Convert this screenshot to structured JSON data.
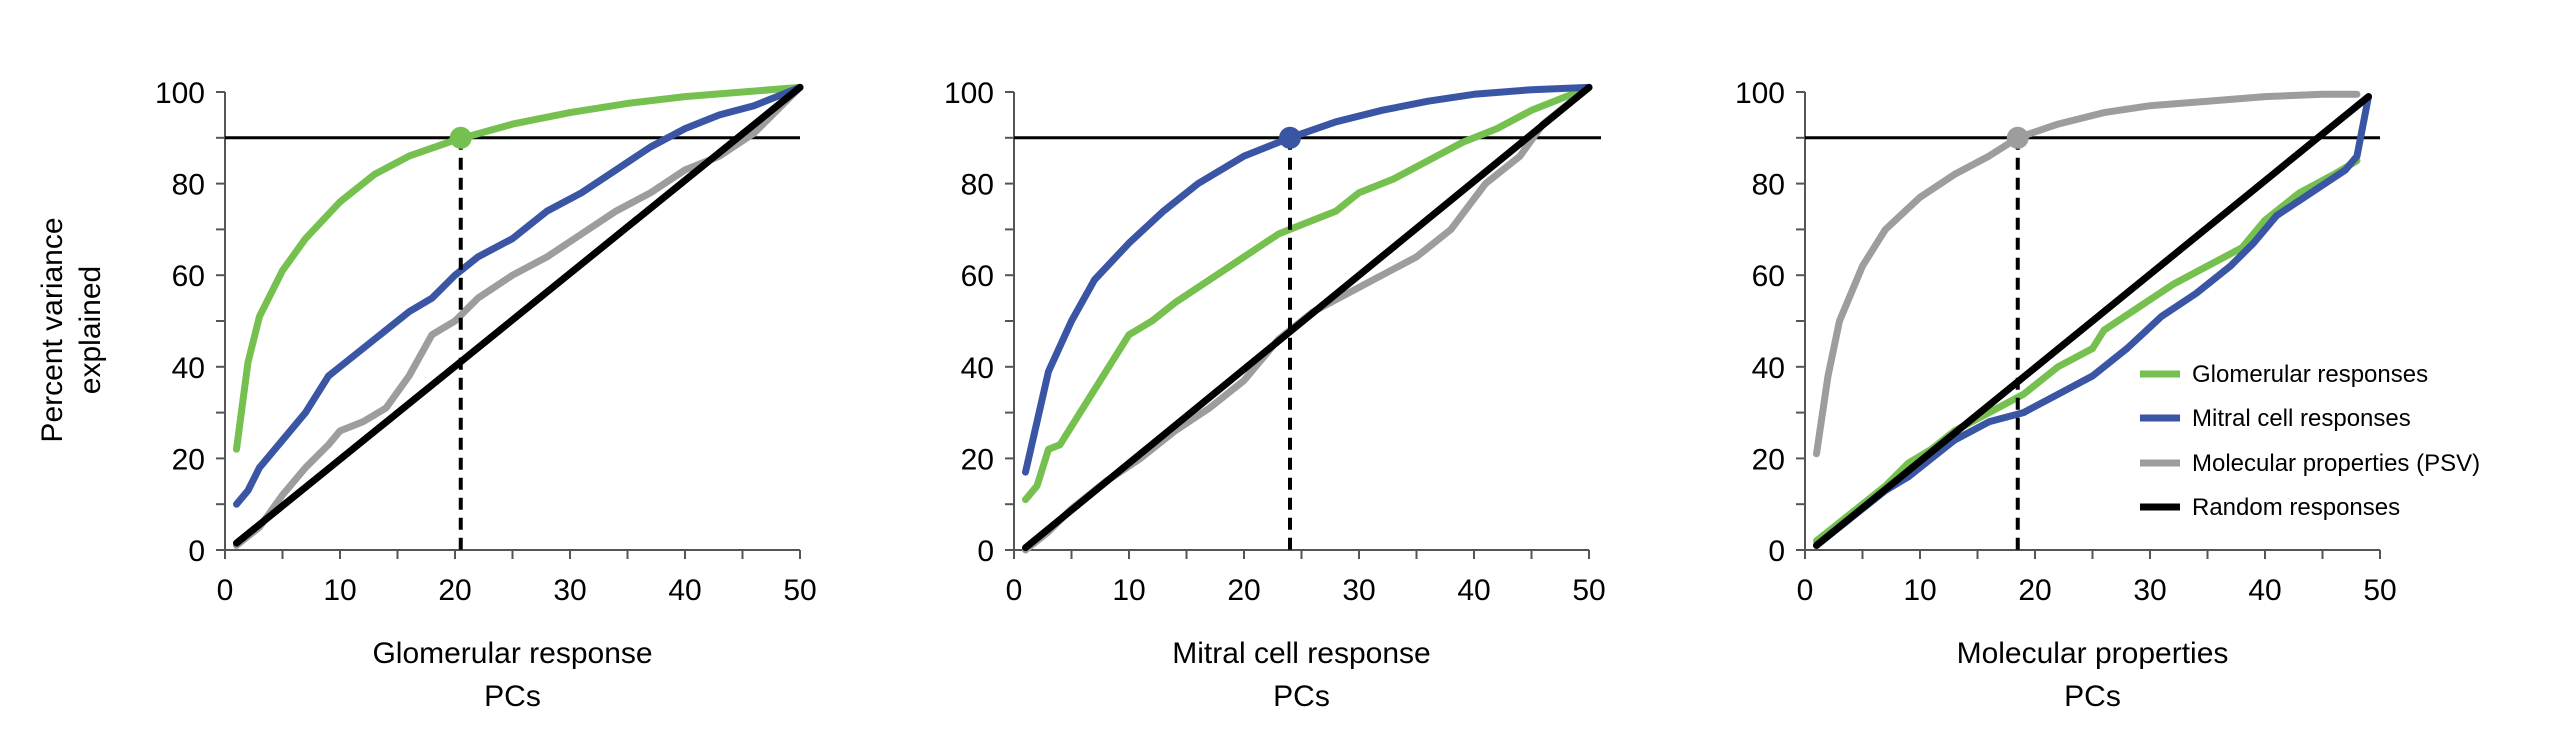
{
  "chart_data": [
    {
      "type": "line",
      "xlabel": [
        "Glomerular response",
        "PCs"
      ],
      "ylabel": [
        "Percent variance",
        "explained"
      ],
      "xlim": [
        0,
        50
      ],
      "ylim": [
        0,
        100
      ],
      "xticks": [
        0,
        10,
        20,
        30,
        40,
        50
      ],
      "yticks": [
        0,
        20,
        40,
        60,
        80,
        100
      ],
      "threshold": 90,
      "marker": {
        "x": 20.5,
        "y": 90,
        "series": "Glomerular responses"
      },
      "series": [
        {
          "name": "Glomerular responses",
          "color": "#76c04f",
          "x": [
            1,
            2,
            3,
            5,
            7,
            10,
            13,
            16,
            20,
            25,
            30,
            35,
            40,
            45,
            50
          ],
          "y": [
            22,
            41,
            51,
            61,
            68,
            76,
            82,
            86,
            89.5,
            93,
            95.5,
            97.5,
            99,
            100,
            101
          ]
        },
        {
          "name": "Mitral cell responses",
          "color": "#3a55a4",
          "x": [
            1,
            2,
            3,
            5,
            7,
            9,
            10,
            13,
            16,
            18,
            20,
            22,
            25,
            28,
            31,
            34,
            37,
            40,
            43,
            46,
            49,
            50
          ],
          "y": [
            10,
            13,
            18,
            24,
            30,
            38,
            40,
            46,
            52,
            55,
            60,
            64,
            68,
            74,
            78,
            83,
            88,
            92,
            95,
            97,
            100,
            101
          ]
        },
        {
          "name": "Molecular properties (PSV)",
          "color": "#9d9d9d",
          "x": [
            1,
            3,
            5,
            7,
            9,
            10,
            12,
            14,
            16,
            18,
            20,
            22,
            25,
            28,
            31,
            34,
            37,
            40,
            43,
            46,
            50
          ],
          "y": [
            1,
            5,
            12,
            18,
            23,
            26,
            28,
            31,
            38,
            47,
            50,
            55,
            60,
            64,
            69,
            74,
            78,
            83,
            86,
            91,
            101
          ]
        },
        {
          "name": "Random responses",
          "color": "#000000",
          "x": [
            1,
            50
          ],
          "y": [
            1.5,
            101
          ]
        }
      ]
    },
    {
      "type": "line",
      "xlabel": [
        "Mitral cell response",
        "PCs"
      ],
      "xlim": [
        0,
        50
      ],
      "ylim": [
        0,
        100
      ],
      "xticks": [
        0,
        10,
        20,
        30,
        40,
        50
      ],
      "yticks": [
        0,
        20,
        40,
        60,
        80,
        100
      ],
      "threshold": 90,
      "marker": {
        "x": 24,
        "y": 90,
        "series": "Mitral cell responses"
      },
      "series": [
        {
          "name": "Glomerular responses",
          "color": "#76c04f",
          "x": [
            1,
            2,
            3,
            4,
            6,
            8,
            10,
            12,
            14,
            17,
            20,
            23,
            25,
            28,
            30,
            33,
            36,
            39,
            42,
            45,
            48,
            50
          ],
          "y": [
            11,
            14,
            22,
            23,
            31,
            39,
            47,
            50,
            54,
            59,
            64,
            69,
            71,
            74,
            78,
            81,
            85,
            89,
            92,
            96,
            99,
            101
          ]
        },
        {
          "name": "Mitral cell responses",
          "color": "#3a55a4",
          "x": [
            1,
            2,
            3,
            5,
            7,
            10,
            13,
            16,
            20,
            24,
            28,
            32,
            36,
            40,
            45,
            50
          ],
          "y": [
            17,
            28,
            39,
            50,
            59,
            67,
            74,
            80,
            86,
            90,
            93.5,
            96,
            98,
            99.5,
            100.5,
            101
          ]
        },
        {
          "name": "Molecular properties (PSV)",
          "color": "#9d9d9d",
          "x": [
            1,
            3,
            5,
            8,
            11,
            14,
            17,
            20,
            23,
            26,
            29,
            32,
            35,
            38,
            41,
            44,
            46,
            50
          ],
          "y": [
            0,
            4,
            9,
            15,
            20,
            26,
            31,
            37,
            46,
            52,
            56,
            60,
            64,
            70,
            80,
            86,
            93,
            101
          ]
        },
        {
          "name": "Random responses",
          "color": "#000000",
          "x": [
            1,
            50
          ],
          "y": [
            0.5,
            101
          ]
        }
      ]
    },
    {
      "type": "line",
      "xlabel": [
        "Molecular properties",
        "PCs"
      ],
      "xlim": [
        0,
        50
      ],
      "ylim": [
        0,
        100
      ],
      "xticks": [
        0,
        10,
        20,
        30,
        40,
        50
      ],
      "yticks": [
        0,
        20,
        40,
        60,
        80,
        100
      ],
      "threshold": 90,
      "marker": {
        "x": 18.5,
        "y": 90,
        "series": "Molecular properties (PSV)"
      },
      "legend": "bottom-right",
      "series": [
        {
          "name": "Glomerular responses",
          "color": "#76c04f",
          "x": [
            1,
            2,
            3,
            5,
            7,
            9,
            11,
            13,
            16,
            19,
            22,
            25,
            26,
            29,
            32,
            35,
            38,
            40,
            43,
            46,
            48
          ],
          "y": [
            2,
            4,
            6,
            10,
            14,
            19,
            22,
            26,
            30,
            34,
            40,
            44,
            48,
            53,
            58,
            62,
            66,
            72,
            78,
            82,
            85
          ]
        },
        {
          "name": "Mitral cell responses",
          "color": "#3a55a4",
          "x": [
            1,
            3,
            5,
            7,
            9,
            11,
            13,
            16,
            19,
            22,
            25,
            28,
            31,
            34,
            37,
            39,
            41,
            44,
            47,
            48,
            49
          ],
          "y": [
            1,
            5,
            9,
            13,
            16,
            20,
            24,
            28,
            30,
            34,
            38,
            44,
            51,
            56,
            62,
            67,
            73,
            78,
            83,
            86,
            99
          ]
        },
        {
          "name": "Molecular properties (PSV)",
          "color": "#9d9d9d",
          "x": [
            1,
            2,
            3,
            5,
            7,
            10,
            13,
            16,
            18.5,
            22,
            26,
            30,
            35,
            40,
            45,
            48
          ],
          "y": [
            21,
            38,
            50,
            62,
            70,
            77,
            82,
            86,
            90,
            93,
            95.5,
            97,
            98,
            99,
            99.5,
            99.5
          ]
        },
        {
          "name": "Random responses",
          "color": "#000000",
          "x": [
            1,
            49
          ],
          "y": [
            1,
            99
          ]
        }
      ]
    }
  ],
  "legend": {
    "items": [
      {
        "label": "Glomerular responses",
        "color": "#76c04f"
      },
      {
        "label": "Mitral cell responses",
        "color": "#3a55a4"
      },
      {
        "label": "Molecular properties (PSV)",
        "color": "#9d9d9d"
      },
      {
        "label": "Random responses",
        "color": "#000000"
      }
    ]
  }
}
